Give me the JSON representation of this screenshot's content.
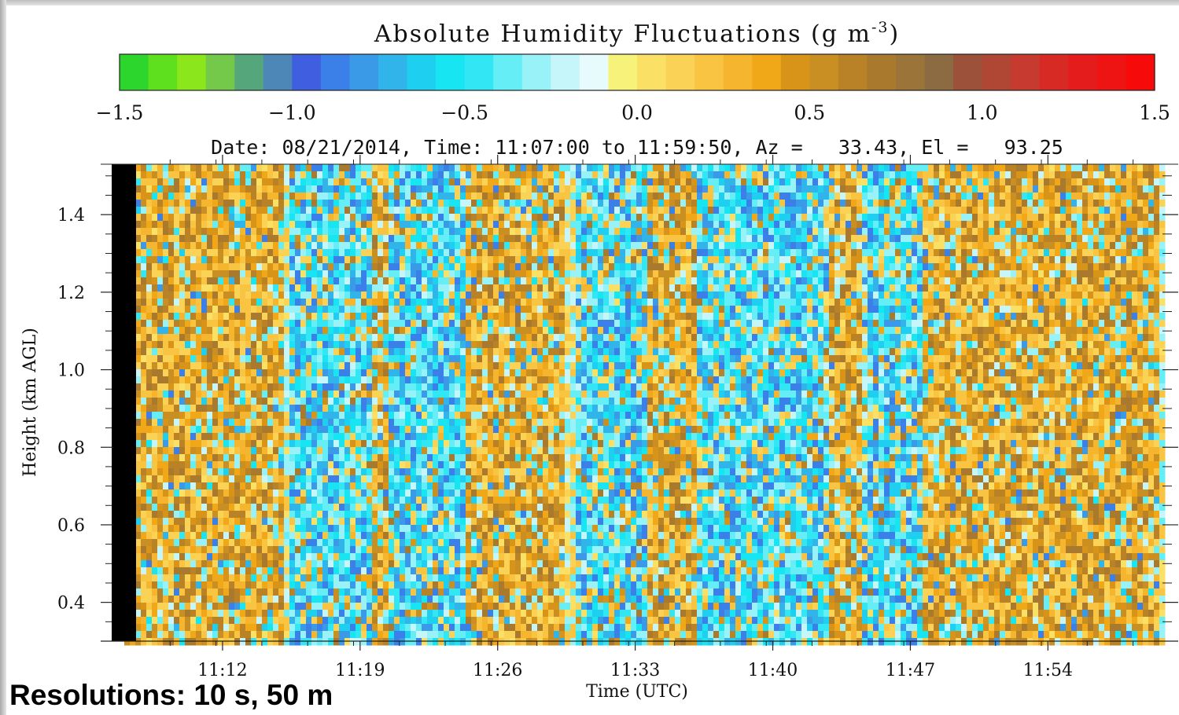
{
  "chart_data": {
    "type": "heatmap",
    "colorbar": {
      "title": "Absolute Humidity Fluctuations (g m",
      "title_exponent": "-3",
      "title_suffix": ")",
      "range": [
        -1.5,
        1.5
      ],
      "tick_labels": [
        "−1.5",
        "−1.0",
        "−0.5",
        "0.0",
        "0.5",
        "1.0",
        "1.5"
      ],
      "tick_values": [
        -1.5,
        -1.0,
        -0.5,
        0.0,
        0.5,
        1.0,
        1.5
      ],
      "colors": [
        "#2dd62d",
        "#5ee01e",
        "#8ce61c",
        "#74c94a",
        "#55a67a",
        "#4d87b8",
        "#3f5fe0",
        "#3b7fe8",
        "#3a9ae8",
        "#30b4ea",
        "#1fcff0",
        "#17e6f2",
        "#33e6f4",
        "#66eef6",
        "#99f2f8",
        "#c6f6fa",
        "#e8fbfc",
        "#f7f27a",
        "#fbe066",
        "#fad255",
        "#f8c442",
        "#f5b52e",
        "#f0a819",
        "#d89419",
        "#c98f22",
        "#b98226",
        "#a97a2e",
        "#9a7438",
        "#8c6a42",
        "#9c523a",
        "#b04634",
        "#c63a30",
        "#d82a24",
        "#e41c1c",
        "#ef1414",
        "#f70a0a"
      ]
    },
    "subtitle": "Date: 08/21/2014, Time: 11:07:00 to 11:59:50, Az =   33.43, El =   93.25",
    "xlabel": "Time (UTC)",
    "ylabel": "Height (km AGL)",
    "x_tick_labels": [
      "11:12",
      "11:19",
      "11:26",
      "11:33",
      "11:40",
      "11:47",
      "11:54"
    ],
    "x_tick_minutes": [
      12,
      19,
      26,
      33,
      40,
      47,
      54
    ],
    "xlim_minutes": [
      7.0,
      59.83
    ],
    "y_tick_labels": [
      "0.4",
      "0.6",
      "0.8",
      "1.0",
      "1.2",
      "1.4"
    ],
    "y_tick_values": [
      0.4,
      0.6,
      0.8,
      1.0,
      1.2,
      1.4
    ],
    "ylim": [
      0.3,
      1.53
    ],
    "no_data_color": "#000000",
    "regions": {
      "dry_plumes_minutes": [
        [
          15.5,
          19.5
        ],
        [
          20.5,
          24.5
        ],
        [
          30,
          33.5
        ],
        [
          36,
          43
        ],
        [
          44.5,
          47.5
        ]
      ],
      "moist_plumes_minutes": [
        [
          7,
          15
        ],
        [
          19.5,
          20.5
        ],
        [
          24.5,
          29.5
        ],
        [
          33.5,
          36
        ],
        [
          43,
          44.5
        ],
        [
          47.5,
          59.8
        ]
      ],
      "no_data_columns_minutes": [
        [
          7.0,
          7.6
        ]
      ]
    }
  },
  "footer": {
    "text": "Resolutions: 10 s, 50 m"
  }
}
